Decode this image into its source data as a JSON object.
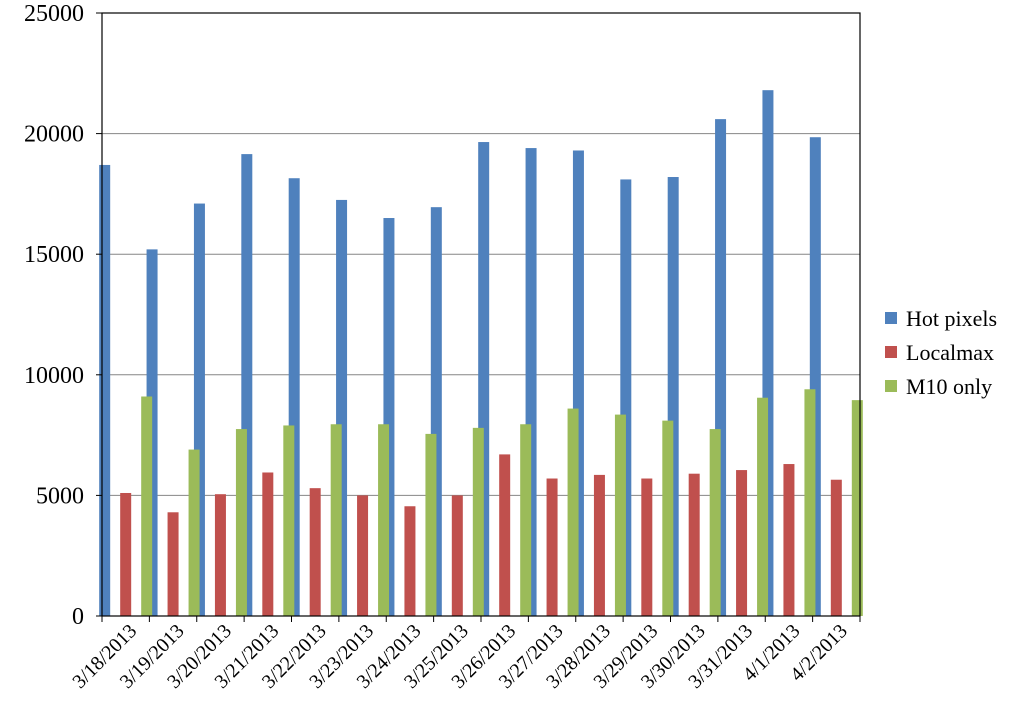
{
  "chart_data": {
    "type": "bar",
    "title": "",
    "xlabel": "",
    "ylabel": "",
    "ylim": [
      0,
      25000
    ],
    "yticks": [
      "0",
      "5000",
      "10000",
      "15000",
      "20000",
      "25000"
    ],
    "grid": true,
    "legend_position": "right",
    "categories": [
      "3/18/2013",
      "3/19/2013",
      "3/20/2013",
      "3/21/2013",
      "3/22/2013",
      "3/23/2013",
      "3/24/2013",
      "3/25/2013",
      "3/26/2013",
      "3/27/2013",
      "3/28/2013",
      "3/29/2013",
      "3/30/2013",
      "3/31/2013",
      "4/1/2013",
      "4/2/2013"
    ],
    "series": [
      {
        "name": "Hot pixels",
        "color": "#4F81BD",
        "values": [
          18700,
          15200,
          17100,
          19150,
          18150,
          17250,
          16500,
          16950,
          19650,
          19400,
          19300,
          18100,
          18200,
          20600,
          21800,
          19850
        ]
      },
      {
        "name": "Localmax",
        "color": "#C0504D",
        "values": [
          5100,
          4300,
          5050,
          5950,
          5300,
          5000,
          4550,
          5000,
          6700,
          5700,
          5850,
          5700,
          5900,
          6050,
          6300,
          5650
        ]
      },
      {
        "name": "M10 only",
        "color": "#9BBB59",
        "values": [
          9100,
          6900,
          7750,
          7900,
          7950,
          7950,
          7550,
          7800,
          7950,
          8600,
          8350,
          8100,
          7750,
          9050,
          9400,
          8950
        ]
      }
    ]
  }
}
